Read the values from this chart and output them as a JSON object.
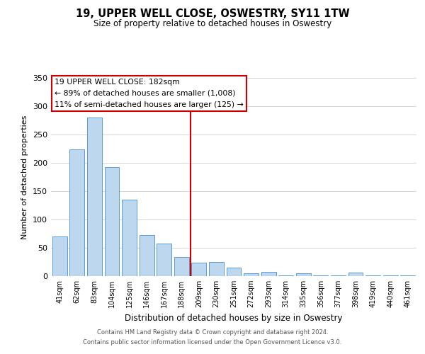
{
  "title": "19, UPPER WELL CLOSE, OSWESTRY, SY11 1TW",
  "subtitle": "Size of property relative to detached houses in Oswestry",
  "xlabel": "Distribution of detached houses by size in Oswestry",
  "ylabel": "Number of detached properties",
  "bar_labels": [
    "41sqm",
    "62sqm",
    "83sqm",
    "104sqm",
    "125sqm",
    "146sqm",
    "167sqm",
    "188sqm",
    "209sqm",
    "230sqm",
    "251sqm",
    "272sqm",
    "293sqm",
    "314sqm",
    "335sqm",
    "356sqm",
    "377sqm",
    "398sqm",
    "419sqm",
    "440sqm",
    "461sqm"
  ],
  "bar_values": [
    70,
    224,
    280,
    193,
    135,
    73,
    58,
    34,
    24,
    25,
    15,
    5,
    7,
    1,
    5,
    1,
    1,
    6,
    1,
    1,
    1
  ],
  "bar_color": "#bdd7ee",
  "bar_edge_color": "#5b9bd5",
  "vline_color": "#cc0000",
  "ylim": [
    0,
    350
  ],
  "yticks": [
    0,
    50,
    100,
    150,
    200,
    250,
    300,
    350
  ],
  "annotation_title": "19 UPPER WELL CLOSE: 182sqm",
  "annotation_line1": "← 89% of detached houses are smaller (1,008)",
  "annotation_line2": "11% of semi-detached houses are larger (125) →",
  "annotation_box_color": "#ffffff",
  "annotation_box_edge": "#cc0000",
  "footer_line1": "Contains HM Land Registry data © Crown copyright and database right 2024.",
  "footer_line2": "Contains public sector information licensed under the Open Government Licence v3.0.",
  "background_color": "#ffffff",
  "grid_color": "#d0d0d0"
}
